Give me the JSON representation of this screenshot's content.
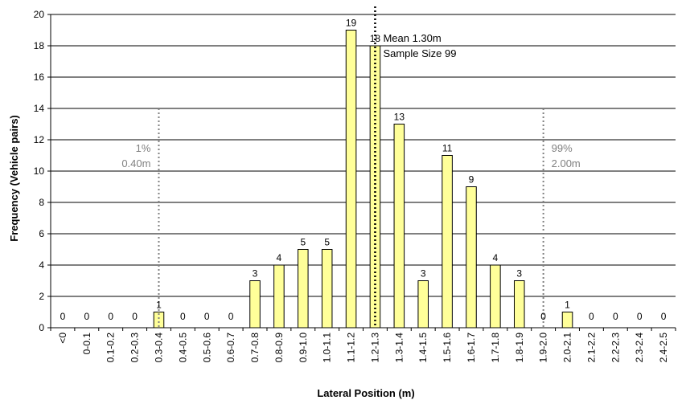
{
  "chart_data": {
    "type": "bar",
    "xlabel": "Lateral Position (m)",
    "ylabel": "Frequency (Vehicle pairs)",
    "ylim": [
      0,
      20
    ],
    "yticks": [
      "0",
      "2",
      "4",
      "6",
      "8",
      "10",
      "12",
      "14",
      "16",
      "18",
      "20"
    ],
    "categories": [
      "<0",
      "0-0.1",
      "0.1-0.2",
      "0.2-0.3",
      "0.3-0.4",
      "0.4-0.5",
      "0.5-0.6",
      "0.6-0.7",
      "0.7-0.8",
      "0.8-0.9",
      "0.9-1.0",
      "1.0-1.1",
      "1.1-1.2",
      "1.2-1.3",
      "1.3-1.4",
      "1.4-1.5",
      "1.5-1.6",
      "1.6-1.7",
      "1.7-1.8",
      "1.8-1.9",
      "1.9-2.0",
      "2.0-2.1",
      "2.1-2.2",
      "2.2-2.3",
      "2.3-2.4",
      "2.4-2.5"
    ],
    "values": [
      0,
      0,
      0,
      0,
      1,
      0,
      0,
      0,
      3,
      4,
      5,
      5,
      19,
      18,
      13,
      3,
      11,
      9,
      4,
      3,
      0,
      1,
      0,
      0,
      0,
      0
    ],
    "data_labels": [
      "0",
      "0",
      "0",
      "0",
      "1",
      "0",
      "0",
      "0",
      "3",
      "4",
      "5",
      "5",
      "19",
      "18",
      "13",
      "3",
      "11",
      "9",
      "4",
      "3",
      "0",
      "1",
      "0",
      "0",
      "0",
      "0"
    ],
    "bar_color": "#FFFF99",
    "bar_stroke": "#000000",
    "grid": true,
    "reference_lines": [
      {
        "category_index": 4.5,
        "style": "dotted",
        "color": "#808080",
        "label_lines": [
          "1%",
          "0.40m"
        ],
        "label_side": "left"
      },
      {
        "category_index": 13.5,
        "style": "dotted",
        "color": "#000000",
        "label_lines": [
          "Mean 1.30m",
          "Sample Size 99"
        ],
        "label_side": "right"
      },
      {
        "category_index": 20.5,
        "style": "dotted",
        "color": "#808080",
        "label_lines": [
          "99%",
          "2.00m"
        ],
        "label_side": "right"
      }
    ]
  }
}
